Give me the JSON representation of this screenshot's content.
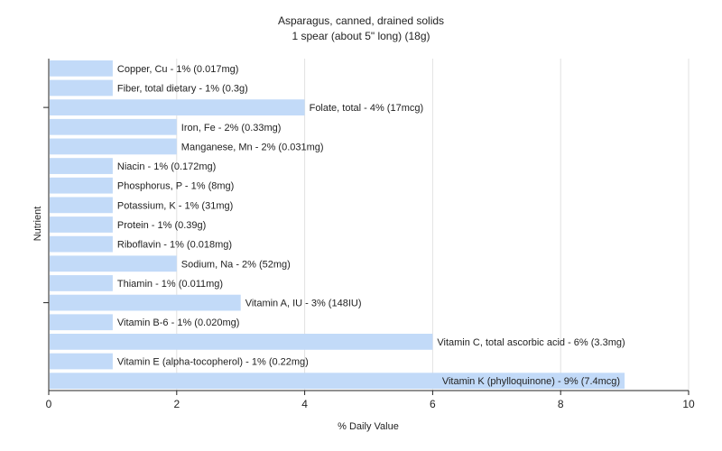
{
  "chart_data": {
    "type": "bar",
    "orientation": "horizontal",
    "title": "Asparagus, canned, drained solids",
    "subtitle": "1 spear (about 5\" long) (18g)",
    "xlabel": "% Daily Value",
    "ylabel": "Nutrient",
    "xlim": [
      0,
      10
    ],
    "xticks": [
      0,
      2,
      4,
      6,
      8,
      10
    ],
    "grid": true,
    "bar_color": "#c2daf8",
    "categories": [
      "Copper, Cu - 1% (0.017mg)",
      "Fiber, total dietary - 1% (0.3g)",
      "Folate, total - 4% (17mcg)",
      "Iron, Fe - 2% (0.33mg)",
      "Manganese, Mn - 2% (0.031mg)",
      "Niacin - 1% (0.172mg)",
      "Phosphorus, P - 1% (8mg)",
      "Potassium, K - 1% (31mg)",
      "Protein - 1% (0.39g)",
      "Riboflavin - 1% (0.018mg)",
      "Sodium, Na - 2% (52mg)",
      "Thiamin - 1% (0.011mg)",
      "Vitamin A, IU - 3% (148IU)",
      "Vitamin B-6 - 1% (0.020mg)",
      "Vitamin C, total ascorbic acid - 6% (3.3mg)",
      "Vitamin E (alpha-tocopherol) - 1% (0.22mg)",
      "Vitamin K (phylloquinone) - 9% (7.4mcg)"
    ],
    "values": [
      1,
      1,
      4,
      2,
      2,
      1,
      1,
      1,
      1,
      1,
      2,
      1,
      3,
      1,
      6,
      1,
      9
    ]
  }
}
